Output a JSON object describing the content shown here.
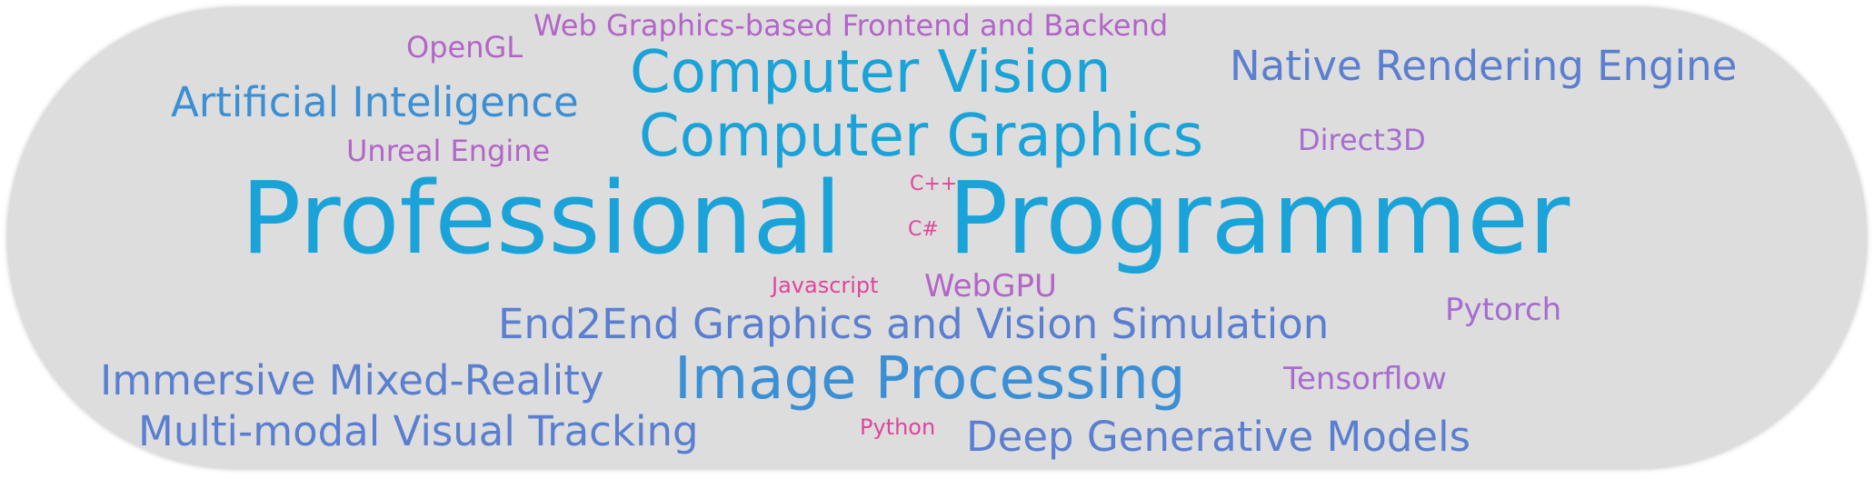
{
  "words": {
    "professional": "Professional",
    "programmer": "Programmer",
    "computer_vision": "Computer Vision",
    "computer_graphics": "Computer Graphics",
    "image_processing": "Image Processing",
    "artificial_intelligence": "Artificial Inteligence",
    "native_rendering_engine": "Native Rendering Engine",
    "web_graphics": "Web Graphics-based Frontend and Backend",
    "opengl": "OpenGL",
    "unreal_engine": "Unreal Engine",
    "direct3d": "Direct3D",
    "cpp": "C++",
    "csharp": "C#",
    "javascript": "Javascript",
    "webgpu": "WebGPU",
    "end2end": "End2End Graphics and Vision Simulation",
    "pytorch": "Pytorch",
    "immersive": "Immersive Mixed-Reality",
    "tensorflow": "Tensorflow",
    "multimodal": "Multi-modal Visual Tracking",
    "python": "Python",
    "deep_generative": "Deep Generative Models"
  },
  "colors": {
    "background": "#dddddd",
    "blue": "#1aa3d8",
    "slate": "#5a7fd0",
    "purple": "#b365c8",
    "pink": "#e0459a"
  }
}
